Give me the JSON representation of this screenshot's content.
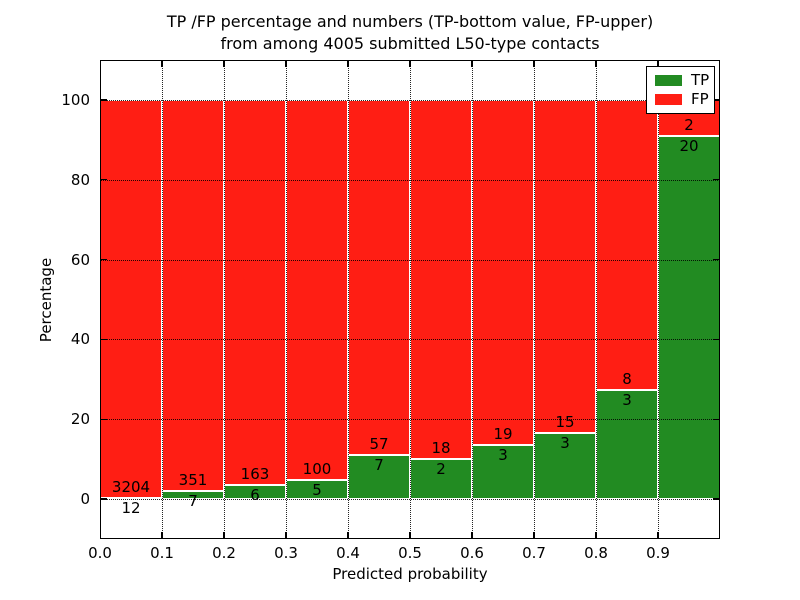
{
  "title": {
    "line1": "TP /FP percentage and numbers (TP-bottom value, FP-upper)",
    "line2": "from among 4005 submitted L50-type contacts"
  },
  "chart_data": {
    "type": "bar",
    "subtype": "stacked-percentage",
    "title": "TP /FP percentage and numbers (TP-bottom value, FP-upper) from among 4005 submitted L50-type contacts",
    "xlabel": "Predicted probability",
    "ylabel": "Percentage",
    "xlim": [
      0.0,
      1.0
    ],
    "ylim": [
      -10,
      110
    ],
    "xticks": [
      "0.0",
      "0.1",
      "0.2",
      "0.3",
      "0.4",
      "0.5",
      "0.6",
      "0.7",
      "0.8",
      "0.9"
    ],
    "yticks": [
      0,
      20,
      40,
      60,
      80,
      100
    ],
    "grid": true,
    "legend_position": "upper right",
    "series": [
      {
        "name": "TP",
        "color": "#228b22",
        "values": [
          12,
          7,
          6,
          5,
          7,
          2,
          3,
          3,
          3,
          20
        ]
      },
      {
        "name": "FP",
        "color": "#ff1e14",
        "values": [
          3204,
          351,
          163,
          100,
          57,
          18,
          19,
          15,
          8,
          2
        ]
      }
    ],
    "bins": [
      {
        "range": "0.0-0.1",
        "tp": 12,
        "fp": 3204,
        "tp_pct": 0.37
      },
      {
        "range": "0.1-0.2",
        "tp": 7,
        "fp": 351,
        "tp_pct": 1.96
      },
      {
        "range": "0.2-0.3",
        "tp": 6,
        "fp": 163,
        "tp_pct": 3.55
      },
      {
        "range": "0.3-0.4",
        "tp": 5,
        "fp": 100,
        "tp_pct": 4.76
      },
      {
        "range": "0.4-0.5",
        "tp": 7,
        "fp": 57,
        "tp_pct": 10.94
      },
      {
        "range": "0.5-0.6",
        "tp": 2,
        "fp": 18,
        "tp_pct": 10.0
      },
      {
        "range": "0.6-0.7",
        "tp": 3,
        "fp": 19,
        "tp_pct": 13.64
      },
      {
        "range": "0.7-0.8",
        "tp": 3,
        "fp": 15,
        "tp_pct": 16.67
      },
      {
        "range": "0.8-0.9",
        "tp": 3,
        "fp": 8,
        "tp_pct": 27.27
      },
      {
        "range": "0.9-1.0",
        "tp": 20,
        "fp": 2,
        "tp_pct": 90.91
      }
    ],
    "total_contacts": 4005
  },
  "colors": {
    "tp_green": "#228b22",
    "fp_red": "#ff1e14",
    "grid": "#000000",
    "background": "#ffffff"
  }
}
